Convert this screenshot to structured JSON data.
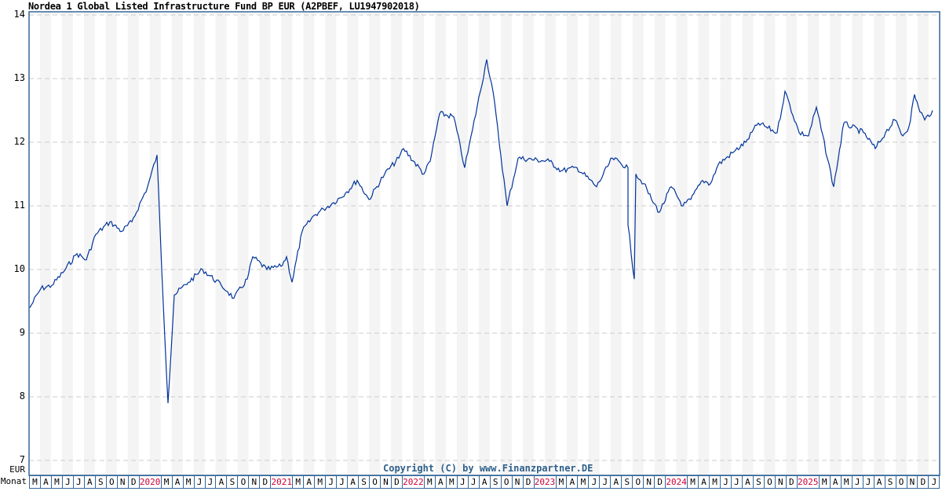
{
  "title": "Nordea 1 Global Listed Infrastructure Fund BP EUR (A2PBEF, LU1947902018)",
  "copyright": "Copyright (C) by www.Finanzpartner.DE",
  "axis": {
    "currency_label": "EUR",
    "month_row_label": "Monat",
    "y_ticks": [
      "14",
      "13",
      "12",
      "11",
      "10",
      "9",
      "8",
      "7"
    ]
  },
  "colors": {
    "line": "#003399",
    "border": "#336699",
    "stripe": "#f4f4f4",
    "grid": "#cccccc",
    "year_label": "#cc0033",
    "copyright": "#2e5f8a"
  },
  "months": [
    "M",
    "A",
    "M",
    "J",
    "J",
    "A",
    "S",
    "O",
    "N",
    "D",
    "2020",
    "M",
    "A",
    "M",
    "J",
    "J",
    "A",
    "S",
    "O",
    "N",
    "D",
    "2021",
    "M",
    "A",
    "M",
    "J",
    "J",
    "A",
    "S",
    "O",
    "N",
    "D",
    "2022",
    "M",
    "A",
    "M",
    "J",
    "J",
    "A",
    "S",
    "O",
    "N",
    "D",
    "2023",
    "M",
    "A",
    "M",
    "J",
    "J",
    "A",
    "S",
    "O",
    "N",
    "D",
    "2024",
    "M",
    "A",
    "M",
    "J",
    "J",
    "A",
    "S",
    "O",
    "N",
    "D",
    "2025",
    "M",
    "A",
    "M",
    "J",
    "J",
    "A",
    "S",
    "O",
    "N",
    "D",
    "J"
  ],
  "chart_data": {
    "type": "line",
    "title": "Nordea 1 Global Listed Infrastructure Fund BP EUR (A2PBEF, LU1947902018)",
    "xlabel": "Monat",
    "ylabel": "EUR",
    "ylim": [
      7,
      14
    ],
    "y_ticks": [
      7,
      8,
      9,
      10,
      11,
      12,
      13,
      14
    ],
    "grid": true,
    "legend": null,
    "x_range": [
      "2019-03",
      "2026-01"
    ],
    "series": [
      {
        "name": "Nordea 1 Global Listed Infrastructure Fund BP EUR",
        "x": [
          "2019-03",
          "2019-04",
          "2019-05",
          "2019-06",
          "2019-07",
          "2019-08",
          "2019-09",
          "2019-10",
          "2019-11",
          "2019-12",
          "2020-01",
          "2020-02",
          "2020-03",
          "2020-03b",
          "2020-04",
          "2020-05",
          "2020-06",
          "2020-07",
          "2020-08",
          "2020-09",
          "2020-10",
          "2020-11",
          "2020-12",
          "2021-01",
          "2021-02",
          "2021-03",
          "2021-04",
          "2021-05",
          "2021-06",
          "2021-07",
          "2021-08",
          "2021-09",
          "2021-10",
          "2021-11",
          "2021-12",
          "2022-01",
          "2022-02",
          "2022-03",
          "2022-04",
          "2022-05",
          "2022-06",
          "2022-07",
          "2022-08",
          "2022-09",
          "2022-10",
          "2022-11",
          "2022-12",
          "2023-01",
          "2023-02",
          "2023-03",
          "2023-04",
          "2023-05",
          "2023-06",
          "2023-07",
          "2023-08",
          "2023-09",
          "2023-10",
          "2023-11",
          "2023-12",
          "2024-01",
          "2024-02",
          "2024-03",
          "2024-04",
          "2024-05",
          "2024-06",
          "2024-07",
          "2024-08",
          "2024-09",
          "2024-10",
          "2024-11",
          "2024-12",
          "2025-01",
          "2025-02",
          "2025-03",
          "2025-04",
          "2025-05",
          "2025-06",
          "2025-07",
          "2025-08",
          "2025-09",
          "2025-10",
          "2025-11",
          "2025-12",
          "2026-01"
        ],
        "values": [
          9.4,
          9.7,
          9.75,
          9.95,
          10.25,
          10.15,
          10.55,
          10.75,
          10.6,
          10.75,
          11.3,
          11.8,
          10.0,
          7.9,
          9.6,
          9.8,
          10.0,
          9.75,
          9.65,
          9.55,
          9.85,
          10.2,
          10.0,
          10.05,
          10.2,
          9.8,
          10.6,
          10.85,
          10.95,
          11.05,
          11.2,
          11.4,
          11.1,
          11.5,
          11.75,
          11.9,
          11.5,
          11.7,
          12.45,
          12.4,
          11.6,
          12.2,
          13.3,
          12.8,
          11.0,
          11.75,
          11.7,
          11.55,
          11.6,
          11.3,
          11.75,
          11.6,
          11.5,
          11.35,
          11.1,
          10.7,
          9.85,
          10.9,
          11.3,
          11.0,
          11.1,
          11.4,
          11.35,
          11.65,
          11.85,
          12.0,
          12.3,
          12.15,
          12.8,
          12.15,
          12.1,
          12.55,
          11.3,
          12.3,
          12.15,
          11.9,
          12.15,
          12.35,
          12.1,
          12.25,
          12.75,
          12.55,
          12.35,
          12.5
        ]
      }
    ]
  }
}
